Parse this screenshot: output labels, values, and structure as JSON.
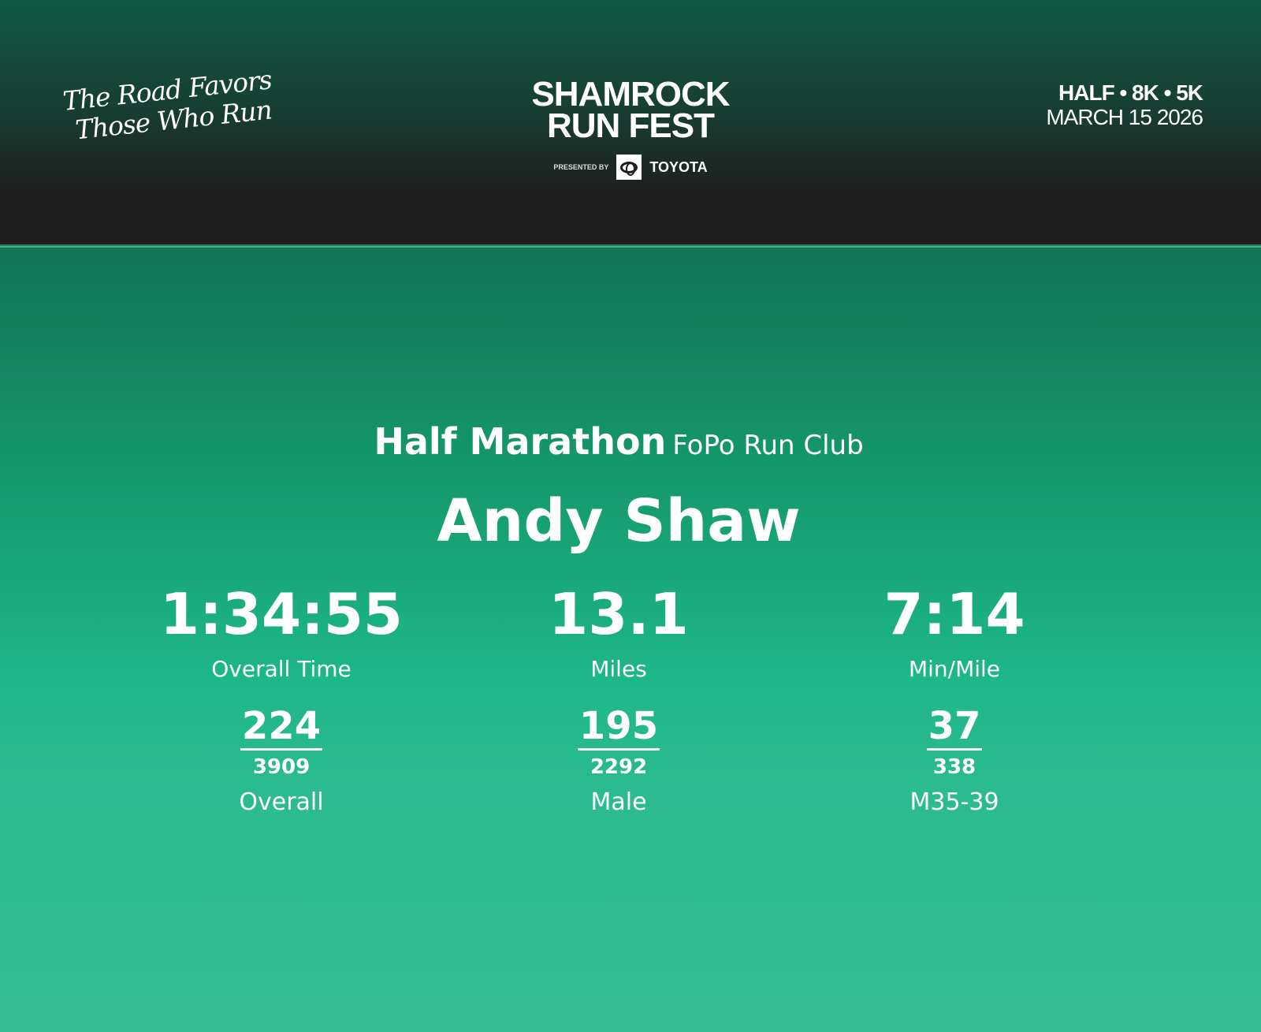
{
  "header": {
    "tagline_line1": "The Road Favors",
    "tagline_line2": "Those Who Run",
    "logo_line1": "SHAMROCK",
    "logo_line2": "RUN FEST",
    "presented_by": "PRESENTED BY",
    "sponsor": "TOYOTA",
    "distances": "HALF • 8K • 5K",
    "date": "MARCH 15 2026"
  },
  "result": {
    "race": "Half Marathon",
    "club": "FoPo Run Club",
    "name": "Andy Shaw",
    "stats": [
      {
        "value": "1:34:55",
        "label": "Overall Time"
      },
      {
        "value": "13.1",
        "label": "Miles"
      },
      {
        "value": "7:14",
        "label": "Min/Mile"
      }
    ],
    "ranks": [
      {
        "place": "224",
        "total": "3909",
        "category": "Overall"
      },
      {
        "place": "195",
        "total": "2292",
        "category": "Male"
      },
      {
        "place": "37",
        "total": "338",
        "category": "M35-39"
      }
    ]
  },
  "colors": {
    "header_dark": "#1e1e1e",
    "header_green": "#0f5a43",
    "main_green": "#1db789"
  }
}
